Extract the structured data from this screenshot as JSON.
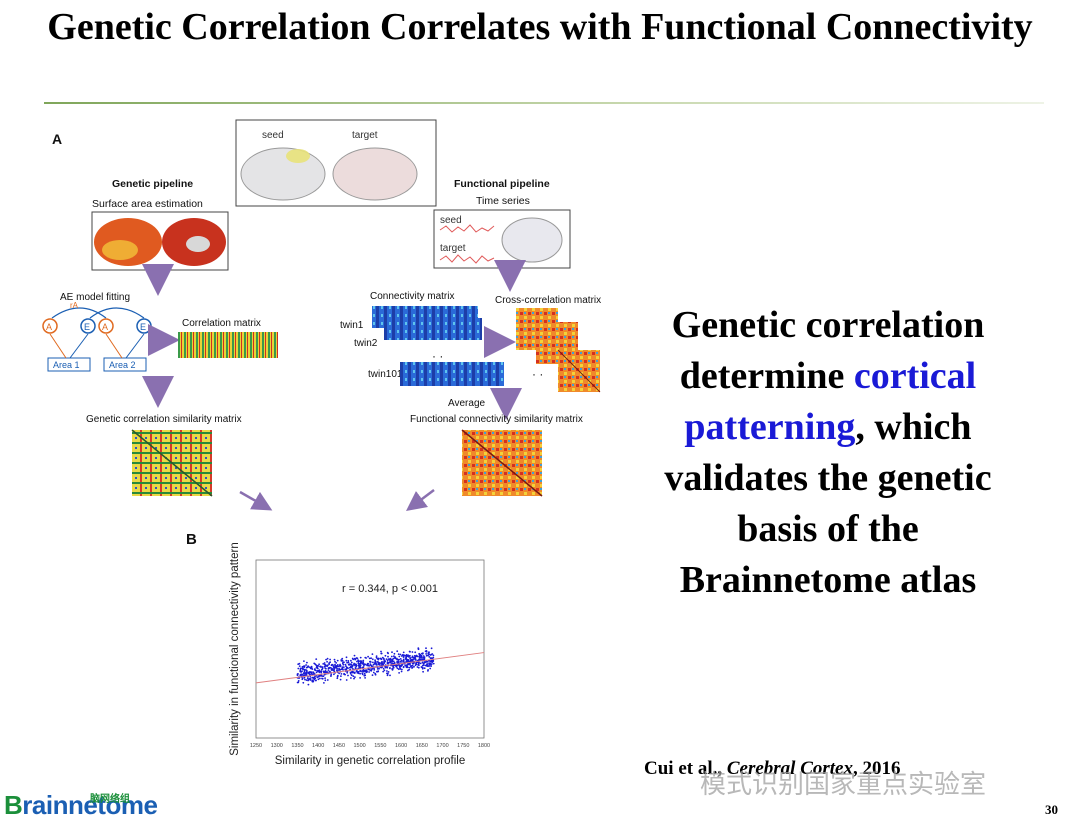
{
  "slide": {
    "title": "Genetic Correlation Correlates with Functional Connectivity",
    "page_number": "30"
  },
  "figure": {
    "panel_a": "A",
    "panel_b": "B",
    "seed": "seed",
    "target": "target",
    "genetic_pipeline": "Genetic pipeline",
    "surface_area": "Surface area estimation",
    "functional_pipeline": "Functional pipeline",
    "time_series": "Time series",
    "ts_seed": "seed",
    "ts_target": "target",
    "ae_model": "AE model fitting",
    "r_a": "rA",
    "node_a": "A",
    "node_e": "E",
    "area1": "Area 1",
    "area2": "Area 2",
    "correlation_matrix": "Correlation matrix",
    "connectivity_matrix": "Connectivity matrix",
    "cross_correlation": "Cross-correlation matrix",
    "twin1": "twin1",
    "twin2": "twin2",
    "twin101": "twin101",
    "average": "Average",
    "genetic_similarity": "Genetic correlation similarity matrix",
    "functional_similarity": "Functional connectivity similarity matrix"
  },
  "chart_data": {
    "type": "scatter",
    "xlabel": "Similarity in genetic correlation profile",
    "ylabel": "Similarity in functional connectivity pattern",
    "annotation": "r = 0.344, p < 0.001",
    "x_ticks": [
      "1250",
      "1300",
      "1350",
      "1400",
      "1450",
      "1500",
      "1550",
      "1600",
      "1650",
      "1700",
      "1750",
      "1800"
    ],
    "xlim": [
      1250,
      1800
    ],
    "ylim": [
      0,
      1
    ],
    "point_color": "#1a1ad6",
    "fit_color": "#e08080",
    "fit_line": [
      [
        1250,
        0.31
      ],
      [
        1800,
        0.48
      ]
    ],
    "cloud": {
      "x_range": [
        1350,
        1680
      ],
      "y_center": 0.4,
      "y_spread": 0.08,
      "count": 900
    }
  },
  "text_panel": {
    "line1": "Genetic correlation",
    "line2a": "determine ",
    "line2b": "cortical",
    "line3a": "patterning",
    "line3b": ", which",
    "line4": "validates the genetic",
    "line5": "basis of the",
    "line6": "Brainnetome atlas",
    "highlight_color": "#1a1ad6"
  },
  "citation": {
    "author": "Cui et al., ",
    "journal": "Cerebral Cortex",
    "year": ", 2016"
  },
  "watermark": "模式识别国家重点实验室",
  "logo": {
    "first": "B",
    "rest": "rainnetome",
    "sub": "脑网络组"
  }
}
